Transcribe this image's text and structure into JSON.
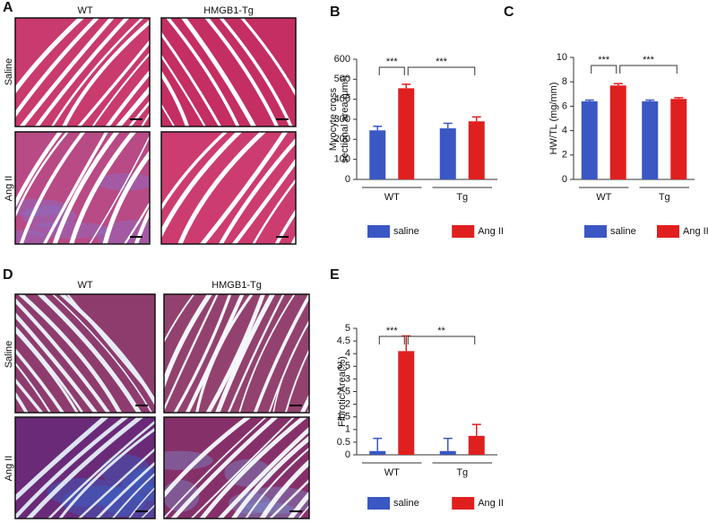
{
  "panels": {
    "A": {
      "label": "A",
      "columns": [
        "WT",
        "HMGB1-Tg"
      ],
      "rows": [
        "Saline",
        "Ang II"
      ]
    },
    "D": {
      "label": "D",
      "columns": [
        "WT",
        "HMGB1-Tg"
      ],
      "rows": [
        "Saline",
        "Ang II"
      ]
    }
  },
  "chart_data": [
    {
      "type": "bar",
      "label": "B",
      "ylabel": [
        "Myocyte cross",
        "sectional area (μm²)"
      ],
      "categories": [
        "WT",
        "Tg"
      ],
      "ylim": [
        0,
        600
      ],
      "yticks": [
        0,
        100,
        200,
        300,
        400,
        500,
        600
      ],
      "series": [
        {
          "name": "saline",
          "color": "#3a57c4",
          "values": [
            245,
            255
          ],
          "errors": [
            20,
            25
          ]
        },
        {
          "name": "Ang II",
          "color": "#e0201f",
          "values": [
            455,
            290
          ],
          "errors": [
            20,
            22
          ]
        }
      ],
      "annotations": [
        "***",
        "***"
      ]
    },
    {
      "type": "bar",
      "label": "C",
      "ylabel": [
        "HW/TL (mg/mm)"
      ],
      "categories": [
        "WT",
        "Tg"
      ],
      "ylim": [
        0,
        10
      ],
      "yticks": [
        0,
        2,
        4,
        6,
        8,
        10
      ],
      "series": [
        {
          "name": "saline",
          "color": "#3a57c4",
          "values": [
            6.4,
            6.4
          ],
          "errors": [
            0.1,
            0.1
          ]
        },
        {
          "name": "Ang II",
          "color": "#e0201f",
          "values": [
            7.7,
            6.6
          ],
          "errors": [
            0.15,
            0.1
          ]
        }
      ],
      "annotations": [
        "***",
        "***"
      ]
    },
    {
      "type": "bar",
      "label": "E",
      "ylabel": [
        "Fibrotic Area(%)"
      ],
      "categories": [
        "WT",
        "Tg"
      ],
      "ylim": [
        0,
        5
      ],
      "yticks": [
        0,
        0.5,
        1,
        1.5,
        2,
        2.5,
        3,
        3.5,
        4,
        4.5,
        5
      ],
      "series": [
        {
          "name": "saline",
          "color": "#3a57c4",
          "values": [
            0.15,
            0.15
          ],
          "errors": [
            0.5,
            0.5
          ]
        },
        {
          "name": "Ang II",
          "color": "#e0201f",
          "values": [
            4.1,
            0.75
          ],
          "errors": [
            0.6,
            0.45
          ]
        }
      ],
      "annotations": [
        "***",
        "**"
      ]
    }
  ]
}
